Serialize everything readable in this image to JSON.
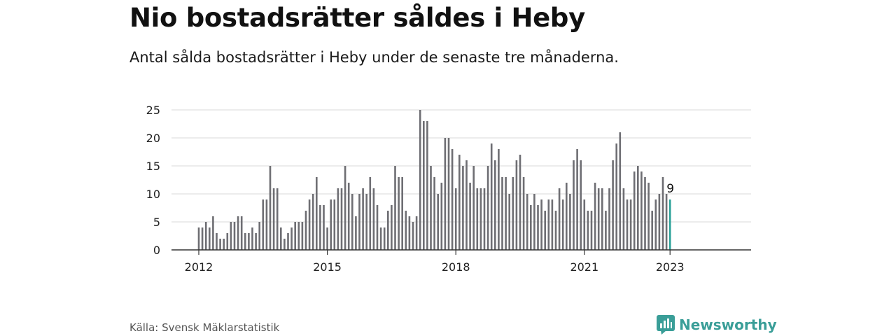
{
  "header": {
    "title": "Nio bostadsrätter såldes i Heby",
    "subtitle": "Antal sålda bostadsrätter i Heby under de senaste tre månaderna."
  },
  "footer": {
    "source": "Källa: Svensk Mäklarstatistik",
    "brand": "Newsworthy"
  },
  "colors": {
    "bar": "#6e6e73",
    "highlight": "#2aa198",
    "grid": "#d9d9d9",
    "brand": "#3a9e98"
  },
  "icons": {
    "brand_logo": "bar-chart-speech-bubble-icon"
  },
  "chart_data": {
    "type": "bar",
    "title": "",
    "xlabel": "",
    "ylabel": "",
    "ylim": [
      0,
      25
    ],
    "yticks": [
      0,
      5,
      10,
      15,
      20,
      25
    ],
    "x_tick_labels": [
      "2012",
      "2015",
      "2018",
      "2021",
      "2023"
    ],
    "x_tick_index": [
      0,
      36,
      72,
      108,
      132
    ],
    "grid": true,
    "values": [
      4,
      4,
      5,
      4,
      6,
      3,
      2,
      2,
      3,
      5,
      5,
      6,
      6,
      3,
      3,
      4,
      3,
      5,
      9,
      9,
      15,
      11,
      11,
      4,
      2,
      3,
      4,
      5,
      5,
      5,
      7,
      9,
      10,
      13,
      8,
      8,
      4,
      9,
      9,
      11,
      11,
      15,
      12,
      10,
      6,
      10,
      11,
      10,
      13,
      11,
      8,
      4,
      4,
      7,
      8,
      15,
      13,
      13,
      7,
      6,
      5,
      6,
      25,
      23,
      23,
      15,
      13,
      10,
      12,
      20,
      20,
      18,
      11,
      17,
      15,
      16,
      12,
      15,
      11,
      11,
      11,
      15,
      19,
      16,
      18,
      13,
      13,
      10,
      13,
      16,
      17,
      13,
      10,
      8,
      10,
      8,
      9,
      7,
      9,
      9,
      7,
      11,
      9,
      12,
      10,
      16,
      18,
      16,
      9,
      7,
      7,
      12,
      11,
      11,
      7,
      11,
      16,
      19,
      21,
      11,
      9,
      9,
      14,
      15,
      14,
      13,
      12,
      7,
      9,
      10,
      13,
      10,
      9
    ],
    "last_value_label": "9"
  }
}
